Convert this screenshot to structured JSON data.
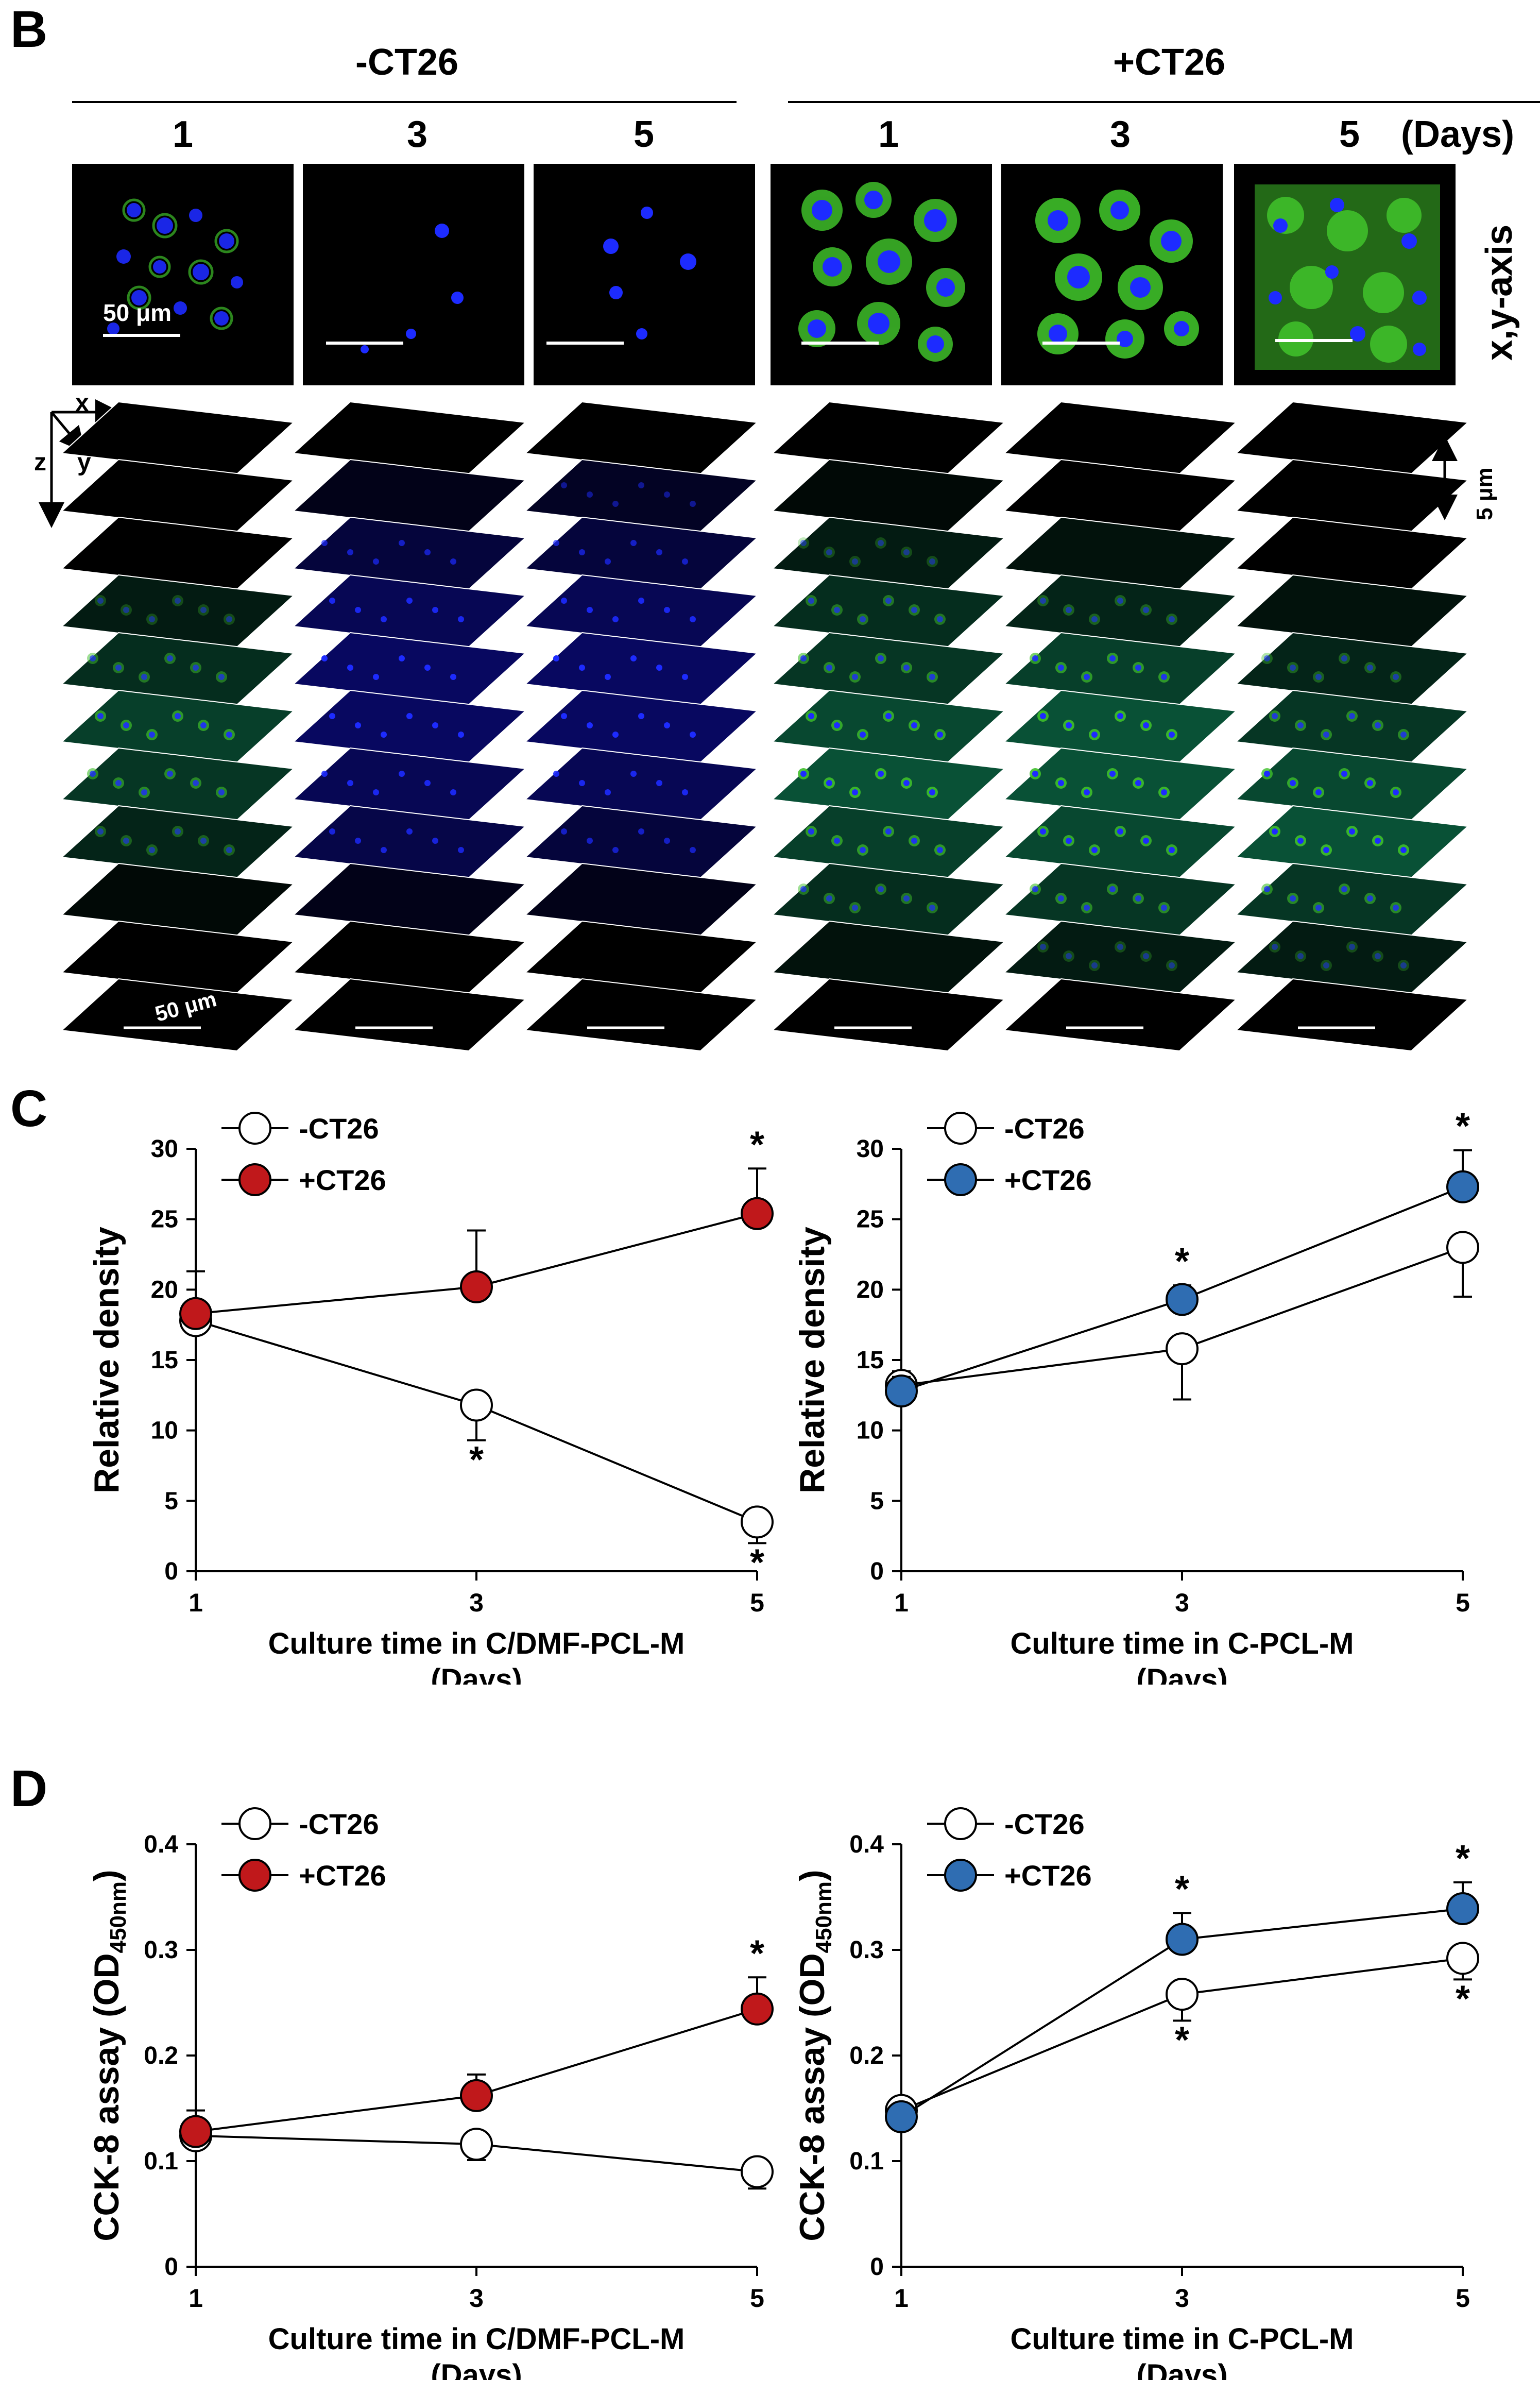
{
  "panel_b": {
    "letter": "B",
    "groups": [
      {
        "title": "-CT26",
        "days": [
          "1",
          "3",
          "5"
        ]
      },
      {
        "title": "+CT26",
        "days": [
          "1",
          "3",
          "5"
        ]
      }
    ],
    "days_unit": "(Days)",
    "xy_label": "x,y-axis",
    "scale_label": "50 μm",
    "z_step_label": "5 μm",
    "axis_letters": {
      "x": "x",
      "y": "y",
      "z": "z"
    }
  },
  "panel_c": {
    "letter": "C"
  },
  "panel_d": {
    "letter": "D"
  },
  "colors": {
    "red": "#c0181b",
    "blue": "#2f6db2",
    "open": "#ffffff",
    "green": "#3fbf2a",
    "nucleus": "#1d2bff"
  },
  "chart_data": [
    {
      "type": "line",
      "panel": "C",
      "ylabel": "Relative density",
      "xlabel": "Culture time in C/DMF-PCL-M",
      "xlabel2": "(Days)",
      "x": [
        1,
        3,
        5
      ],
      "ylim": [
        0,
        30
      ],
      "yticks": [
        0,
        5,
        10,
        15,
        20,
        25,
        30
      ],
      "ytick_labels": [
        "0",
        "5",
        "10",
        "15",
        "20",
        "25",
        "30"
      ],
      "series": [
        {
          "name": "-CT26",
          "marker": "open",
          "values": [
            17.8,
            11.8,
            3.5
          ],
          "errors": [
            1.0,
            2.5,
            1.5
          ],
          "err_dir": [
            "up",
            "down",
            "down"
          ],
          "stars": [
            false,
            true,
            true
          ],
          "star_pos": [
            "",
            "below",
            "below"
          ]
        },
        {
          "name": "+CT26",
          "marker": "red",
          "values": [
            18.3,
            20.2,
            25.4
          ],
          "errors": [
            3.0,
            4.0,
            3.2
          ],
          "err_dir": [
            "up",
            "up",
            "up"
          ],
          "stars": [
            false,
            false,
            true
          ],
          "star_pos": [
            "",
            "",
            "above"
          ]
        }
      ]
    },
    {
      "type": "line",
      "panel": "C",
      "ylabel": "Relative density",
      "xlabel": "Culture time in C-PCL-M",
      "xlabel2": "(Days)",
      "x": [
        1,
        3,
        5
      ],
      "ylim": [
        0,
        30
      ],
      "yticks": [
        0,
        5,
        10,
        15,
        20,
        25,
        30
      ],
      "ytick_labels": [
        "0",
        "5",
        "10",
        "15",
        "20",
        "25",
        "30"
      ],
      "series": [
        {
          "name": "-CT26",
          "marker": "open",
          "values": [
            13.2,
            15.8,
            23.0
          ],
          "errors": [
            1.0,
            3.6,
            3.5
          ],
          "err_dir": [
            "up",
            "down",
            "down"
          ],
          "stars": [
            false,
            false,
            false
          ],
          "star_pos": [
            "",
            "",
            ""
          ]
        },
        {
          "name": "+CT26",
          "marker": "blue",
          "values": [
            12.8,
            19.3,
            27.3
          ],
          "errors": [
            1.0,
            1.0,
            2.6
          ],
          "err_dir": [
            "up",
            "up",
            "up"
          ],
          "stars": [
            false,
            true,
            true
          ],
          "star_pos": [
            "",
            "above",
            "above"
          ]
        }
      ]
    },
    {
      "type": "line",
      "panel": "D",
      "ylabel": "CCK-8 assay (OD",
      "ylabel_sub": "450nm",
      "ylabel_end": ")",
      "xlabel": "Culture time in C/DMF-PCL-M",
      "xlabel2": "(Days)",
      "x": [
        1,
        3,
        5
      ],
      "ylim": [
        0,
        0.4
      ],
      "yticks": [
        0,
        0.1,
        0.2,
        0.3,
        0.4
      ],
      "ytick_labels": [
        "0",
        "0.1",
        "0.2",
        "0.3",
        "0.4"
      ],
      "series": [
        {
          "name": "-CT26",
          "marker": "open",
          "values": [
            0.124,
            0.116,
            0.09
          ],
          "errors": [
            0.012,
            0.015,
            0.016
          ],
          "err_dir": [
            "down",
            "down",
            "down"
          ],
          "stars": [
            false,
            false,
            false
          ],
          "star_pos": [
            "",
            "",
            ""
          ]
        },
        {
          "name": "+CT26",
          "marker": "red",
          "values": [
            0.128,
            0.162,
            0.244
          ],
          "errors": [
            0.02,
            0.02,
            0.03
          ],
          "err_dir": [
            "up",
            "up",
            "up"
          ],
          "stars": [
            false,
            false,
            true
          ],
          "star_pos": [
            "",
            "",
            "above"
          ]
        }
      ]
    },
    {
      "type": "line",
      "panel": "D",
      "ylabel": "CCK-8 assay (OD",
      "ylabel_sub": "450nm",
      "ylabel_end": ")",
      "xlabel": "Culture time in C-PCL-M",
      "xlabel2": "(Days)",
      "x": [
        1,
        3,
        5
      ],
      "ylim": [
        0,
        0.4
      ],
      "yticks": [
        0,
        0.1,
        0.2,
        0.3,
        0.4
      ],
      "ytick_labels": [
        "0",
        "0.1",
        "0.2",
        "0.3",
        "0.4"
      ],
      "series": [
        {
          "name": "-CT26",
          "marker": "open",
          "values": [
            0.148,
            0.258,
            0.292
          ],
          "errors": [
            0.012,
            0.025,
            0.02
          ],
          "err_dir": [
            "up",
            "down",
            "down"
          ],
          "stars": [
            false,
            true,
            true
          ],
          "star_pos": [
            "",
            "below",
            "below"
          ]
        },
        {
          "name": "+CT26",
          "marker": "blue",
          "values": [
            0.142,
            0.31,
            0.339
          ],
          "errors": [
            0.012,
            0.025,
            0.025
          ],
          "err_dir": [
            "up",
            "up",
            "up"
          ],
          "stars": [
            false,
            true,
            true
          ],
          "star_pos": [
            "",
            "above",
            "above"
          ]
        }
      ]
    }
  ]
}
